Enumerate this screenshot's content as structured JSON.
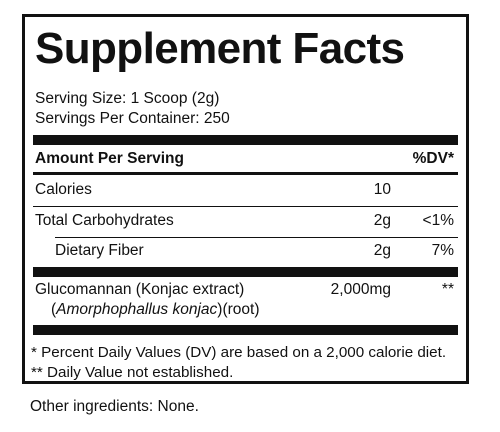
{
  "title": "Supplement Facts",
  "serving_size": "Serving Size: 1 Scoop (2g)",
  "servings_per_container": "Servings Per Container: 250",
  "header": {
    "amount_per_serving": "Amount Per Serving",
    "dv": "%DV*"
  },
  "rows": [
    {
      "name": "Calories",
      "amount": "10",
      "dv": ""
    },
    {
      "name": "Total Carbohydrates",
      "amount": "2g",
      "dv": "<1%"
    },
    {
      "name": "Dietary Fiber",
      "amount": "2g",
      "dv": "7%"
    }
  ],
  "glucomannan": {
    "name": "Glucomannan (Konjac extract)",
    "paren_open": "(",
    "latin": "Amorphophallus konjac",
    "source": ")(root)",
    "amount": "2,000mg",
    "dv": "**"
  },
  "footnotes": [
    "* Percent Daily Values (DV) are based on a 2,000 calorie diet.",
    "** Daily Value not established."
  ],
  "other_ingredients": "Other ingredients: None."
}
